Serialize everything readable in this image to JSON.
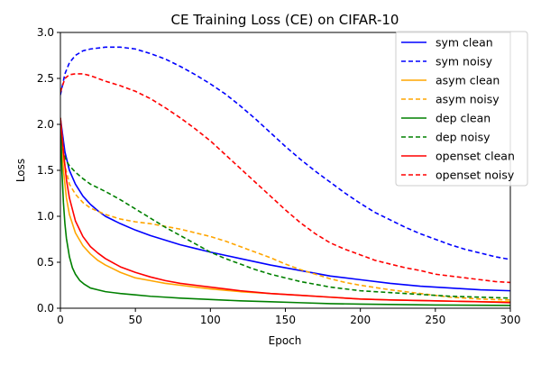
{
  "chart_data": {
    "type": "line",
    "title": "CE Training Loss (CE) on CIFAR-10",
    "xlabel": "Epoch",
    "ylabel": "Loss",
    "xlim": [
      0,
      300
    ],
    "ylim": [
      0,
      3.0
    ],
    "xticks": [
      0,
      50,
      100,
      150,
      200,
      250,
      300
    ],
    "yticks": [
      0.0,
      0.5,
      1.0,
      1.5,
      2.0,
      2.5,
      3.0
    ],
    "ytick_labels": [
      "0.0",
      "0.5",
      "1.0",
      "1.5",
      "2.0",
      "2.5",
      "3.0"
    ],
    "grid": false,
    "legend_position": "top-right",
    "series": [
      {
        "name": "sym clean",
        "color": "#0000ff",
        "dash": "solid",
        "x": [
          0,
          3,
          6,
          10,
          15,
          20,
          25,
          30,
          40,
          50,
          60,
          70,
          80,
          90,
          100,
          120,
          140,
          160,
          180,
          200,
          220,
          240,
          260,
          280,
          300
        ],
        "y": [
          2.07,
          1.7,
          1.5,
          1.35,
          1.22,
          1.13,
          1.06,
          1.0,
          0.92,
          0.85,
          0.79,
          0.74,
          0.69,
          0.65,
          0.61,
          0.54,
          0.47,
          0.41,
          0.35,
          0.31,
          0.27,
          0.24,
          0.22,
          0.2,
          0.19
        ]
      },
      {
        "name": "sym noisy",
        "color": "#0000ff",
        "dash": "dashed",
        "x": [
          0,
          3,
          6,
          10,
          15,
          20,
          30,
          40,
          50,
          60,
          70,
          80,
          90,
          100,
          110,
          120,
          130,
          140,
          150,
          160,
          170,
          180,
          190,
          200,
          210,
          220,
          230,
          240,
          250,
          260,
          270,
          280,
          290,
          300
        ],
        "y": [
          2.32,
          2.55,
          2.67,
          2.75,
          2.8,
          2.82,
          2.84,
          2.84,
          2.82,
          2.77,
          2.71,
          2.63,
          2.54,
          2.44,
          2.33,
          2.2,
          2.06,
          1.91,
          1.76,
          1.62,
          1.49,
          1.37,
          1.25,
          1.14,
          1.04,
          0.96,
          0.88,
          0.81,
          0.75,
          0.69,
          0.64,
          0.6,
          0.56,
          0.53
        ]
      },
      {
        "name": "asym clean",
        "color": "#ffa500",
        "dash": "solid",
        "x": [
          0,
          2,
          4,
          6,
          10,
          15,
          20,
          25,
          30,
          40,
          50,
          60,
          70,
          80,
          90,
          100,
          120,
          140,
          160,
          180,
          200,
          220,
          250,
          280,
          300
        ],
        "y": [
          2.07,
          1.5,
          1.2,
          1.02,
          0.82,
          0.68,
          0.59,
          0.52,
          0.47,
          0.39,
          0.33,
          0.3,
          0.27,
          0.25,
          0.23,
          0.21,
          0.18,
          0.16,
          0.14,
          0.12,
          0.1,
          0.09,
          0.08,
          0.07,
          0.07
        ]
      },
      {
        "name": "asym noisy",
        "color": "#ffa500",
        "dash": "dashed",
        "x": [
          0,
          3,
          6,
          10,
          15,
          20,
          30,
          40,
          50,
          60,
          70,
          80,
          90,
          100,
          110,
          120,
          130,
          140,
          150,
          160,
          170,
          180,
          190,
          200,
          220,
          240,
          260,
          280,
          300
        ],
        "y": [
          2.07,
          1.55,
          1.35,
          1.24,
          1.15,
          1.09,
          1.02,
          0.97,
          0.94,
          0.92,
          0.89,
          0.86,
          0.82,
          0.78,
          0.73,
          0.67,
          0.61,
          0.55,
          0.48,
          0.42,
          0.37,
          0.32,
          0.28,
          0.25,
          0.2,
          0.16,
          0.12,
          0.1,
          0.09
        ]
      },
      {
        "name": "dep clean",
        "color": "#008000",
        "dash": "solid",
        "x": [
          0,
          1,
          2,
          3,
          4,
          6,
          8,
          10,
          13,
          16,
          20,
          25,
          30,
          40,
          50,
          60,
          70,
          80,
          100,
          120,
          140,
          160,
          180,
          200,
          250,
          300
        ],
        "y": [
          2.07,
          1.5,
          1.15,
          0.92,
          0.76,
          0.56,
          0.44,
          0.37,
          0.3,
          0.26,
          0.22,
          0.2,
          0.18,
          0.16,
          0.145,
          0.13,
          0.12,
          0.11,
          0.095,
          0.08,
          0.07,
          0.06,
          0.05,
          0.045,
          0.035,
          0.03
        ]
      },
      {
        "name": "dep noisy",
        "color": "#008000",
        "dash": "dashed",
        "x": [
          0,
          2,
          4,
          6,
          10,
          15,
          20,
          30,
          40,
          50,
          60,
          70,
          80,
          90,
          100,
          110,
          120,
          130,
          140,
          150,
          160,
          170,
          180,
          200,
          220,
          240,
          260,
          280,
          300
        ],
        "y": [
          2.05,
          1.7,
          1.6,
          1.55,
          1.48,
          1.41,
          1.35,
          1.27,
          1.18,
          1.08,
          0.98,
          0.88,
          0.79,
          0.7,
          0.61,
          0.54,
          0.48,
          0.42,
          0.37,
          0.33,
          0.29,
          0.26,
          0.23,
          0.19,
          0.17,
          0.15,
          0.13,
          0.12,
          0.11
        ]
      },
      {
        "name": "openset clean",
        "color": "#ff0000",
        "dash": "solid",
        "x": [
          0,
          2,
          4,
          6,
          10,
          15,
          20,
          25,
          30,
          40,
          50,
          60,
          70,
          80,
          90,
          100,
          120,
          140,
          160,
          180,
          200,
          220,
          250,
          280,
          300
        ],
        "y": [
          2.07,
          1.7,
          1.4,
          1.2,
          0.95,
          0.78,
          0.67,
          0.6,
          0.54,
          0.45,
          0.39,
          0.34,
          0.3,
          0.27,
          0.25,
          0.23,
          0.19,
          0.16,
          0.14,
          0.12,
          0.1,
          0.09,
          0.08,
          0.07,
          0.06
        ]
      },
      {
        "name": "openset noisy",
        "color": "#ff0000",
        "dash": "dashed",
        "x": [
          0,
          3,
          6,
          10,
          15,
          20,
          30,
          40,
          50,
          60,
          70,
          80,
          90,
          100,
          110,
          120,
          130,
          140,
          150,
          160,
          170,
          180,
          190,
          200,
          210,
          220,
          230,
          240,
          250,
          260,
          270,
          280,
          290,
          300
        ],
        "y": [
          2.35,
          2.5,
          2.54,
          2.55,
          2.55,
          2.53,
          2.47,
          2.42,
          2.36,
          2.28,
          2.18,
          2.07,
          1.95,
          1.82,
          1.67,
          1.52,
          1.37,
          1.22,
          1.07,
          0.93,
          0.81,
          0.71,
          0.64,
          0.58,
          0.52,
          0.48,
          0.44,
          0.41,
          0.37,
          0.35,
          0.33,
          0.31,
          0.29,
          0.28
        ]
      }
    ]
  }
}
